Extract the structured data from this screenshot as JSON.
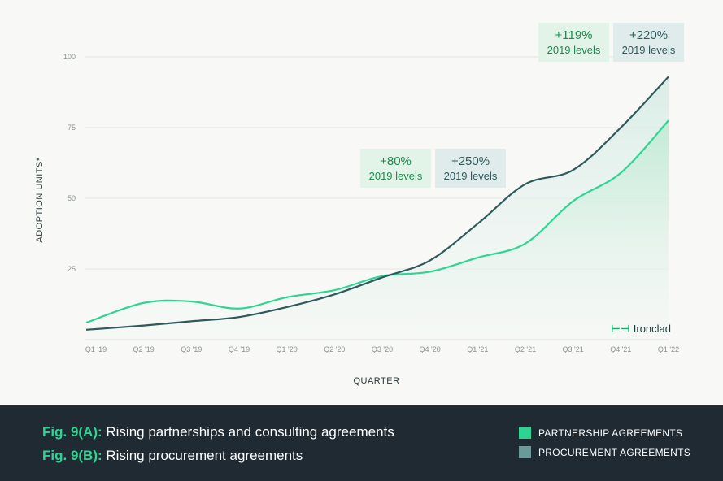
{
  "chart_data": {
    "type": "line",
    "categories": [
      "Q1 '19",
      "Q2 '19",
      "Q3 '19",
      "Q4 '19",
      "Q1 '20",
      "Q2 '20",
      "Q3 '20",
      "Q4 '20",
      "Q1 '21",
      "Q2 '21",
      "Q3 '21",
      "Q4 '21",
      "Q1 '22"
    ],
    "series": [
      {
        "name": "PARTNERSHIP AGREEMENTS",
        "color": "#2ed592",
        "values": [
          6,
          13,
          13.5,
          11,
          15,
          17.5,
          22.5,
          24,
          29,
          34,
          49,
          59,
          77.5
        ]
      },
      {
        "name": "PROCUREMENT AGREEMENTS",
        "color": "#2f5a5c",
        "values": [
          3.5,
          5,
          6.5,
          8,
          11.5,
          16,
          22,
          28,
          41,
          55,
          60,
          75,
          93
        ]
      }
    ],
    "ylabel": "ADOPTION UNITS*",
    "xlabel": "QUARTER",
    "ylim": [
      0,
      100
    ],
    "yticks": [
      25,
      50,
      75,
      100
    ],
    "grid": true,
    "legend_position": "bottom-right",
    "annotations": [
      {
        "pct": "+80%",
        "sub": "2019 levels",
        "series": "PARTNERSHIP AGREEMENTS"
      },
      {
        "pct": "+250%",
        "sub": "2019 levels",
        "series": "PROCUREMENT AGREEMENTS"
      },
      {
        "pct": "+119%",
        "sub": "2019 levels",
        "series": "PARTNERSHIP AGREEMENTS"
      },
      {
        "pct": "+220%",
        "sub": "2019 levels",
        "series": "PROCUREMENT AGREEMENTS"
      }
    ]
  },
  "brand": {
    "name": "Ironclad",
    "icon": "ironclad-logo-icon"
  },
  "footer": {
    "fig_a_tag": "Fig. 9(A):",
    "fig_a_text": " Rising partnerships and consulting agreements",
    "fig_b_tag": "Fig. 9(B):",
    "fig_b_text": " Rising procurement agreements",
    "legend": [
      {
        "label": "PARTNERSHIP AGREEMENTS",
        "color": "#2ed592"
      },
      {
        "label": "PROCUREMENT AGREEMENTS",
        "color": "#6b9a9a"
      }
    ]
  }
}
